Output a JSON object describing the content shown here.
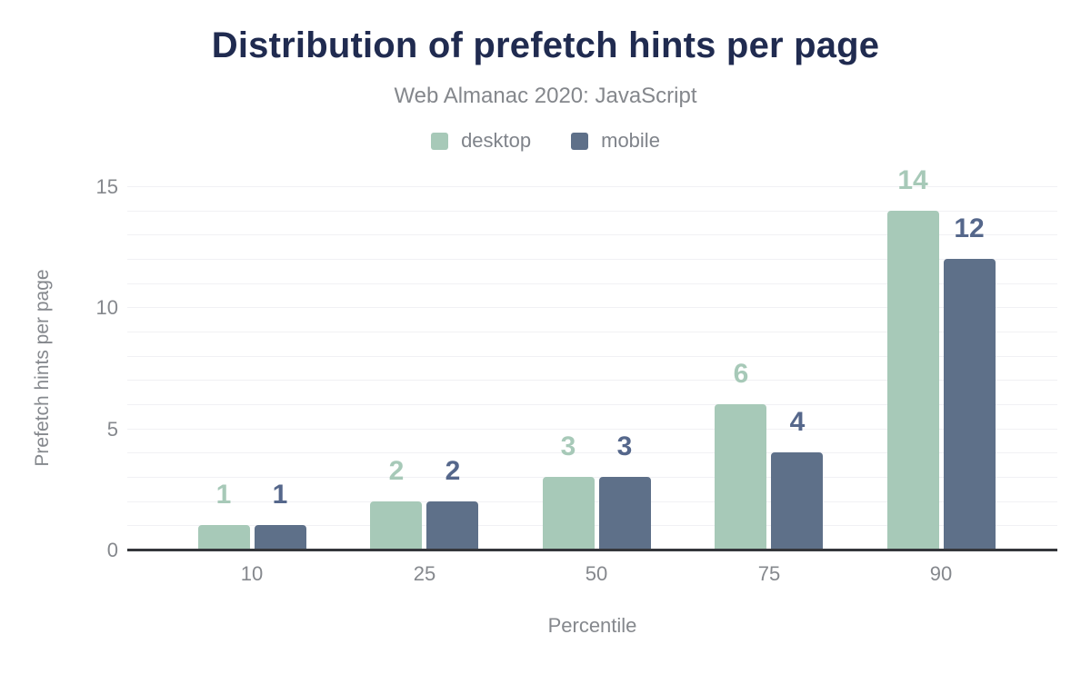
{
  "chart_data": {
    "type": "bar",
    "title": "Distribution of prefetch hints per page",
    "subtitle": "Web Almanac 2020: JavaScript",
    "xlabel": "Percentile",
    "ylabel": "Prefetch hints per page",
    "categories": [
      "10",
      "25",
      "50",
      "75",
      "90"
    ],
    "series": [
      {
        "name": "desktop",
        "color": "#a7c9b8",
        "label_color": "#a7c9b8",
        "values": [
          1,
          2,
          3,
          6,
          14
        ]
      },
      {
        "name": "mobile",
        "color": "#5e7089",
        "label_color": "#55678b",
        "values": [
          1,
          2,
          3,
          4,
          12
        ]
      }
    ],
    "ylim": [
      0,
      15
    ],
    "yticks": [
      0,
      5,
      10,
      15
    ],
    "grid": true,
    "gridline_interval": 1,
    "legend_position": "top",
    "data_labels": true
  },
  "colors": {
    "title": "#202b50",
    "muted_text": "#85888d",
    "axis_line": "#35363b",
    "gridline": "#f1f1f4",
    "background": "#ffffff"
  }
}
